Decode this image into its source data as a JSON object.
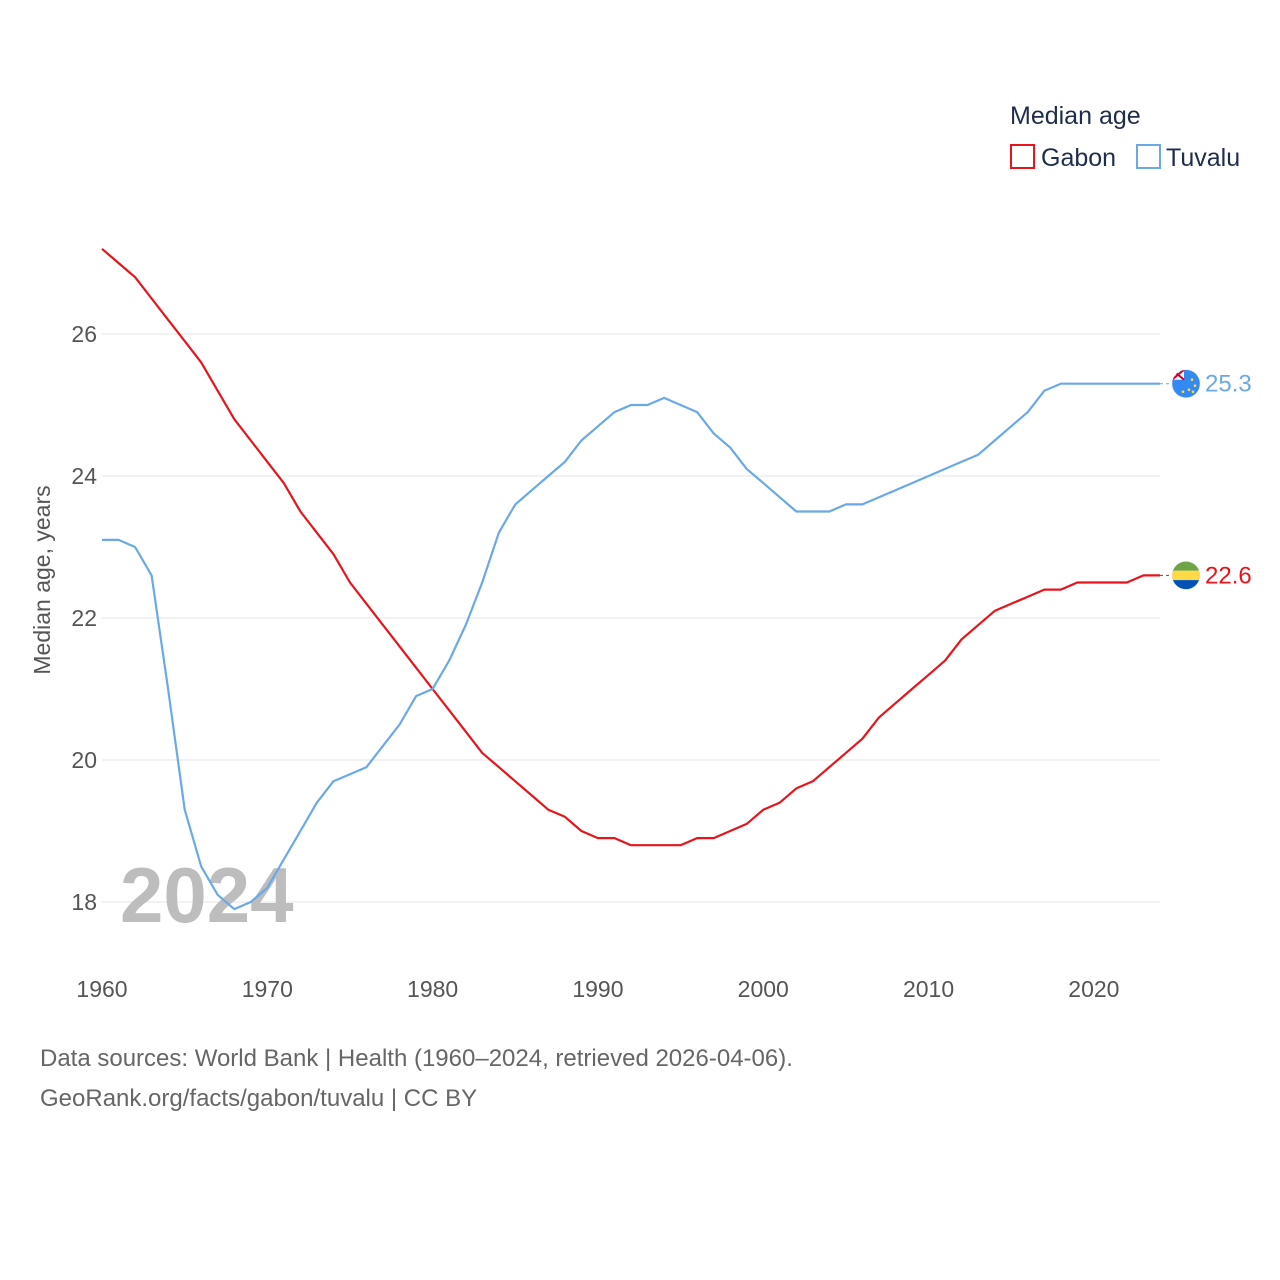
{
  "chart_data": {
    "type": "line",
    "ylabel": "Median age, years",
    "xlabel": "",
    "xlim": [
      1960,
      2024
    ],
    "ylim": [
      17,
      28
    ],
    "yticks": [
      18,
      20,
      22,
      24,
      26
    ],
    "xticks": [
      1960,
      1970,
      1980,
      1990,
      2000,
      2010,
      2020
    ],
    "legend_title": "Median age",
    "legend_position": "top-right",
    "year_overlay": "2024",
    "grid": true,
    "x": [
      1960,
      1961,
      1962,
      1963,
      1964,
      1965,
      1966,
      1967,
      1968,
      1969,
      1970,
      1971,
      1972,
      1973,
      1974,
      1975,
      1976,
      1977,
      1978,
      1979,
      1980,
      1981,
      1982,
      1983,
      1984,
      1985,
      1986,
      1987,
      1988,
      1989,
      1990,
      1991,
      1992,
      1993,
      1994,
      1995,
      1996,
      1997,
      1998,
      1999,
      2000,
      2001,
      2002,
      2003,
      2004,
      2005,
      2006,
      2007,
      2008,
      2009,
      2010,
      2011,
      2012,
      2013,
      2014,
      2015,
      2016,
      2017,
      2018,
      2019,
      2020,
      2021,
      2022,
      2023,
      2024
    ],
    "series": [
      {
        "name": "Gabon",
        "color": "#e8141c",
        "end_label": "22.6",
        "flag": "gabon-flag-icon",
        "values": [
          27.2,
          27.0,
          26.8,
          26.5,
          26.2,
          25.9,
          25.6,
          25.2,
          24.8,
          24.5,
          24.2,
          23.9,
          23.5,
          23.2,
          22.9,
          22.5,
          22.2,
          21.9,
          21.6,
          21.3,
          21.0,
          20.7,
          20.4,
          20.1,
          19.9,
          19.7,
          19.5,
          19.3,
          19.2,
          19.0,
          18.9,
          18.9,
          18.8,
          18.8,
          18.8,
          18.8,
          18.9,
          18.9,
          19.0,
          19.1,
          19.3,
          19.4,
          19.6,
          19.7,
          19.9,
          20.1,
          20.3,
          20.6,
          20.8,
          21.0,
          21.2,
          21.4,
          21.7,
          21.9,
          22.1,
          22.2,
          22.3,
          22.4,
          22.4,
          22.5,
          22.5,
          22.5,
          22.5,
          22.6,
          22.6
        ]
      },
      {
        "name": "Tuvalu",
        "color": "#6aa9e6",
        "end_label": "25.3",
        "flag": "tuvalu-flag-icon",
        "values": [
          23.1,
          23.1,
          23.0,
          22.6,
          21.0,
          19.3,
          18.5,
          18.1,
          17.9,
          18.0,
          18.2,
          18.6,
          19.0,
          19.4,
          19.7,
          19.8,
          19.9,
          20.2,
          20.5,
          20.9,
          21.0,
          21.4,
          21.9,
          22.5,
          23.2,
          23.6,
          23.8,
          24.0,
          24.2,
          24.5,
          24.7,
          24.9,
          25.0,
          25.0,
          25.1,
          25.0,
          24.9,
          24.6,
          24.4,
          24.1,
          23.9,
          23.7,
          23.5,
          23.5,
          23.5,
          23.6,
          23.6,
          23.7,
          23.8,
          23.9,
          24.0,
          24.1,
          24.2,
          24.3,
          24.5,
          24.7,
          24.9,
          25.2,
          25.3,
          25.3,
          25.3,
          25.3,
          25.3,
          25.3,
          25.3
        ]
      }
    ]
  },
  "footer": {
    "sources": "Data sources: World Bank | Health (1960–2024, retrieved 2026-04-06).",
    "attribution": "GeoRank.org/facts/gabon/tuvalu | CC BY"
  }
}
